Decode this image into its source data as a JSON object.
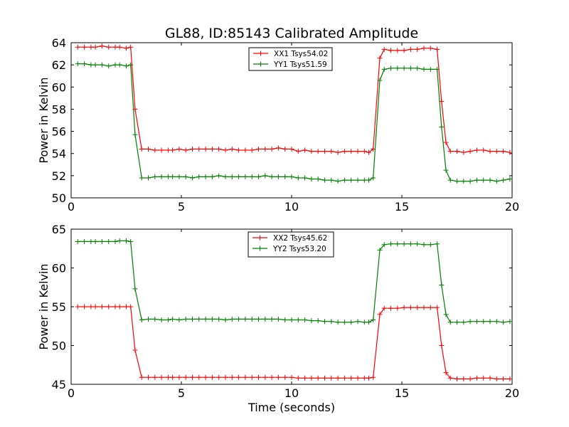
{
  "title": "GL88, ID:85143 Calibrated Amplitude",
  "colors": {
    "red": "#ff0000",
    "green": "#008000"
  },
  "chart_data": [
    {
      "type": "line",
      "xlabel": "",
      "ylabel": "Power in Kelvin",
      "xlim": [
        0,
        20
      ],
      "ylim": [
        50,
        64
      ],
      "xticks": [
        0,
        5,
        10,
        15,
        20
      ],
      "yticks": [
        50,
        52,
        54,
        56,
        58,
        60,
        62,
        64
      ],
      "grid": false,
      "legend_position": "top-center",
      "x": [
        0.3,
        0.6,
        0.9,
        1.1,
        1.4,
        1.7,
        2.0,
        2.2,
        2.5,
        2.7,
        2.9,
        3.2,
        3.5,
        3.8,
        4.1,
        4.4,
        4.6,
        4.9,
        5.2,
        5.5,
        5.8,
        6.1,
        6.4,
        6.7,
        7.0,
        7.3,
        7.6,
        7.9,
        8.2,
        8.5,
        8.8,
        9.1,
        9.4,
        9.7,
        10.0,
        10.3,
        10.6,
        10.9,
        11.2,
        11.5,
        11.8,
        12.1,
        12.4,
        12.7,
        13.0,
        13.3,
        13.5,
        13.7,
        14.0,
        14.2,
        14.5,
        14.8,
        15.1,
        15.4,
        15.7,
        16.0,
        16.3,
        16.6,
        16.8,
        17.0,
        17.2,
        17.5,
        17.8,
        18.1,
        18.4,
        18.7,
        19.0,
        19.3,
        19.6,
        19.9
      ],
      "series": [
        {
          "name": "XX1 Tsys54.02",
          "color": "#ff0000",
          "values": [
            63.6,
            63.6,
            63.6,
            63.6,
            63.7,
            63.6,
            63.6,
            63.6,
            63.5,
            63.6,
            58.0,
            54.4,
            54.4,
            54.3,
            54.3,
            54.3,
            54.3,
            54.4,
            54.3,
            54.4,
            54.4,
            54.4,
            54.4,
            54.4,
            54.3,
            54.4,
            54.3,
            54.3,
            54.3,
            54.4,
            54.4,
            54.4,
            54.5,
            54.4,
            54.4,
            54.2,
            54.3,
            54.2,
            54.2,
            54.2,
            54.2,
            54.1,
            54.2,
            54.2,
            54.2,
            54.2,
            54.1,
            54.4,
            62.6,
            63.4,
            63.3,
            63.3,
            63.3,
            63.4,
            63.4,
            63.5,
            63.5,
            63.4,
            58.7,
            55.0,
            54.2,
            54.2,
            54.1,
            54.2,
            54.3,
            54.3,
            54.2,
            54.2,
            54.2,
            54.1
          ]
        },
        {
          "name": "YY1 Tsys51.59",
          "color": "#008000",
          "values": [
            62.1,
            62.1,
            62.0,
            62.0,
            62.0,
            61.9,
            62.0,
            62.0,
            61.9,
            62.0,
            55.7,
            51.8,
            51.8,
            51.9,
            51.9,
            51.9,
            51.9,
            51.9,
            51.9,
            51.8,
            51.9,
            51.9,
            51.9,
            52.0,
            51.9,
            51.9,
            51.9,
            51.9,
            51.9,
            51.9,
            52.0,
            51.9,
            51.9,
            51.9,
            51.9,
            51.8,
            51.8,
            51.7,
            51.7,
            51.6,
            51.6,
            51.5,
            51.6,
            51.6,
            51.6,
            51.6,
            51.6,
            51.8,
            60.6,
            61.6,
            61.7,
            61.7,
            61.7,
            61.7,
            61.7,
            61.6,
            61.6,
            61.6,
            56.4,
            52.5,
            51.6,
            51.5,
            51.5,
            51.5,
            51.6,
            51.6,
            51.6,
            51.5,
            51.6,
            51.7
          ]
        }
      ]
    },
    {
      "type": "line",
      "xlabel": "Time (seconds)",
      "ylabel": "Power in Kelvin",
      "xlim": [
        0,
        20
      ],
      "ylim": [
        45,
        65
      ],
      "xticks": [
        0,
        5,
        10,
        15,
        20
      ],
      "yticks": [
        45,
        50,
        55,
        60,
        65
      ],
      "grid": false,
      "legend_position": "top-center",
      "x": [
        0.3,
        0.6,
        0.9,
        1.1,
        1.4,
        1.7,
        2.0,
        2.2,
        2.5,
        2.7,
        2.9,
        3.2,
        3.5,
        3.8,
        4.1,
        4.4,
        4.6,
        4.9,
        5.2,
        5.5,
        5.8,
        6.1,
        6.4,
        6.7,
        7.0,
        7.3,
        7.6,
        7.9,
        8.2,
        8.5,
        8.8,
        9.1,
        9.4,
        9.7,
        10.0,
        10.3,
        10.6,
        10.9,
        11.2,
        11.5,
        11.8,
        12.1,
        12.4,
        12.7,
        13.0,
        13.3,
        13.5,
        13.7,
        14.0,
        14.2,
        14.5,
        14.8,
        15.1,
        15.4,
        15.7,
        16.0,
        16.3,
        16.6,
        16.8,
        17.0,
        17.2,
        17.5,
        17.8,
        18.1,
        18.4,
        18.7,
        19.0,
        19.3,
        19.6,
        19.9
      ],
      "series": [
        {
          "name": "XX2 Tsys45.62",
          "color": "#ff0000",
          "values": [
            55.0,
            55.0,
            55.0,
            55.0,
            55.0,
            55.0,
            55.0,
            55.0,
            55.0,
            55.0,
            49.4,
            45.9,
            45.9,
            45.9,
            45.9,
            45.9,
            45.9,
            45.9,
            45.9,
            45.9,
            45.9,
            45.9,
            45.9,
            45.9,
            45.9,
            45.9,
            45.9,
            45.9,
            45.9,
            45.9,
            45.9,
            45.9,
            45.9,
            45.9,
            45.9,
            45.8,
            45.8,
            45.8,
            45.8,
            45.8,
            45.8,
            45.8,
            45.8,
            45.8,
            45.8,
            45.8,
            45.8,
            45.9,
            54.0,
            54.8,
            54.8,
            54.8,
            54.9,
            54.9,
            54.9,
            54.9,
            54.9,
            54.9,
            50.0,
            46.5,
            45.8,
            45.7,
            45.7,
            45.7,
            45.8,
            45.8,
            45.8,
            45.7,
            45.7,
            45.7
          ]
        },
        {
          "name": "YY2 Tsys53.20",
          "color": "#008000",
          "values": [
            63.4,
            63.4,
            63.4,
            63.4,
            63.4,
            63.4,
            63.4,
            63.5,
            63.5,
            63.4,
            57.3,
            53.3,
            53.4,
            53.4,
            53.3,
            53.3,
            53.4,
            53.3,
            53.4,
            53.4,
            53.4,
            53.4,
            53.4,
            53.4,
            53.3,
            53.4,
            53.4,
            53.4,
            53.4,
            53.4,
            53.4,
            53.4,
            53.4,
            53.3,
            53.3,
            53.3,
            53.3,
            53.2,
            53.2,
            53.1,
            53.1,
            53.0,
            53.0,
            53.0,
            53.1,
            53.0,
            53.0,
            53.3,
            62.3,
            63.0,
            63.1,
            63.1,
            63.1,
            63.1,
            63.1,
            63.0,
            63.0,
            63.1,
            57.8,
            54.0,
            53.0,
            53.0,
            53.0,
            53.1,
            53.1,
            53.1,
            53.1,
            53.1,
            53.0,
            53.1
          ]
        }
      ]
    }
  ]
}
